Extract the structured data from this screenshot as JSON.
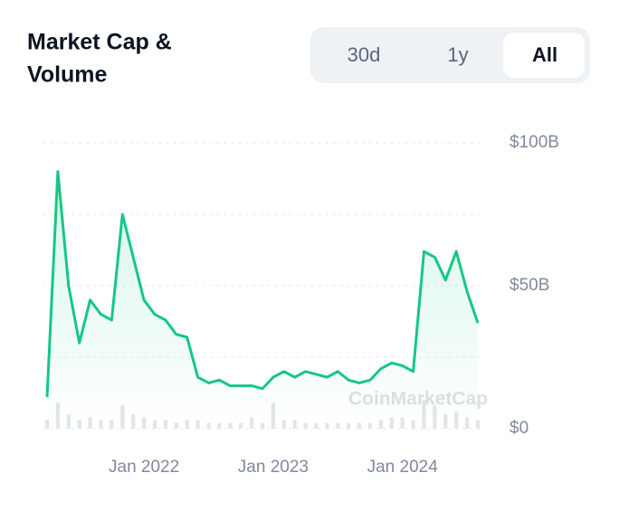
{
  "chart_data": {
    "type": "line",
    "title": [
      "Market Cap &",
      "Volume"
    ],
    "buttons": [
      "30d",
      "1y",
      "All"
    ],
    "selected": 2,
    "watermark": "CoinMarketCap",
    "x": [
      "2021-04",
      "2021-05",
      "2021-06",
      "2021-07",
      "2021-08",
      "2021-09",
      "2021-10",
      "2021-11",
      "2021-12",
      "2022-01",
      "2022-02",
      "2022-03",
      "2022-04",
      "2022-05",
      "2022-06",
      "2022-07",
      "2022-08",
      "2022-09",
      "2022-10",
      "2022-11",
      "2022-12",
      "2023-01",
      "2023-02",
      "2023-03",
      "2023-04",
      "2023-05",
      "2023-06",
      "2023-07",
      "2023-08",
      "2023-09",
      "2023-10",
      "2023-11",
      "2023-12",
      "2024-01",
      "2024-02",
      "2024-03",
      "2024-04",
      "2024-05",
      "2024-06",
      "2024-07",
      "2024-08"
    ],
    "series": [
      {
        "color": "#16c784",
        "values": [
          11,
          90,
          50,
          30,
          45,
          40,
          38,
          75,
          60,
          45,
          40,
          38,
          33,
          32,
          18,
          16,
          17,
          15,
          15,
          15,
          14,
          18,
          20,
          18,
          20,
          19,
          18,
          20,
          17,
          16,
          17,
          21,
          23,
          22,
          20,
          62,
          60,
          52,
          62,
          48,
          37
        ]
      },
      {
        "type": "bar",
        "color": "#e3e5e8",
        "values": [
          3,
          9,
          5,
          3,
          4,
          3,
          3,
          8,
          5,
          4,
          3,
          3,
          2,
          3,
          3,
          2,
          2,
          2,
          2,
          4,
          2,
          9,
          3,
          3,
          2,
          2,
          2,
          2,
          2,
          2,
          2,
          3,
          4,
          4,
          3,
          10,
          8,
          5,
          6,
          4,
          3
        ]
      }
    ],
    "xlim": [
      "2021-04",
      "2024-08"
    ],
    "xticks": [
      {
        "value": "2022-01",
        "label": "Jan 2022"
      },
      {
        "value": "2023-01",
        "label": "Jan 2023"
      },
      {
        "value": "2024-01",
        "label": "Jan 2024"
      }
    ],
    "ylim": [
      0,
      100
    ],
    "yticks": [
      {
        "value": 0,
        "label": "$0"
      },
      {
        "value": 50,
        "label": "$50B"
      },
      {
        "value": 100,
        "label": "$100B"
      }
    ],
    "grid": true
  }
}
